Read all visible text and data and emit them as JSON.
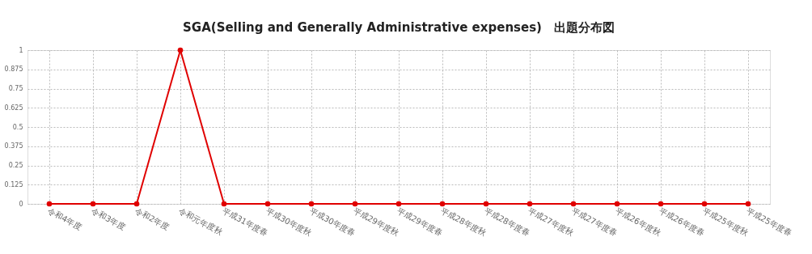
{
  "chart_data": {
    "type": "line",
    "title": "SGA(Selling and Generally Administrative expenses)　出題分布図",
    "categories": [
      "令和4年度",
      "令和3年度",
      "令和2年度",
      "令和元年度秋",
      "平成31年度春",
      "平成30年度秋",
      "平成30年度春",
      "平成29年度秋",
      "平成29年度春",
      "平成28年度秋",
      "平成28年度春",
      "平成27年度秋",
      "平成27年度春",
      "平成26年度秋",
      "平成26年度春",
      "平成25年度秋",
      "平成25年度春"
    ],
    "series": [
      {
        "color": "#e00000",
        "values": [
          0,
          0,
          0,
          1,
          0,
          0,
          0,
          0,
          0,
          0,
          0,
          0,
          0,
          0,
          0,
          0,
          0
        ]
      }
    ],
    "ylim": [
      0,
      1
    ],
    "yticks": [
      0,
      0.125,
      0.25,
      0.375,
      0.5,
      0.625,
      0.75,
      0.875,
      1
    ],
    "grid": true,
    "marker": "circle",
    "line_style": "solid"
  }
}
